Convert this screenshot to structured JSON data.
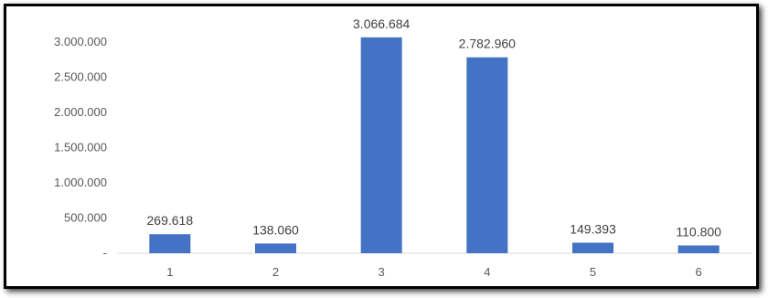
{
  "chart_data": {
    "type": "bar",
    "categories": [
      "1",
      "2",
      "3",
      "4",
      "5",
      "6"
    ],
    "values": [
      269618,
      138060,
      3066684,
      2782960,
      149393,
      110800
    ],
    "value_labels": [
      "269.618",
      "138.060",
      "3.066.684",
      "2.782.960",
      "149.393",
      "110.800"
    ],
    "y_ticks": [
      {
        "value": 0,
        "label": "-"
      },
      {
        "value": 500000,
        "label": "500.000"
      },
      {
        "value": 1000000,
        "label": "1.000.000"
      },
      {
        "value": 1500000,
        "label": "1.500.000"
      },
      {
        "value": 2000000,
        "label": "2.000.000"
      },
      {
        "value": 2500000,
        "label": "2.500.000"
      },
      {
        "value": 3000000,
        "label": "3.000.000"
      }
    ],
    "ylim": [
      0,
      3000000
    ],
    "bar_color": "#4472c4",
    "grid": false,
    "legend": "none"
  }
}
